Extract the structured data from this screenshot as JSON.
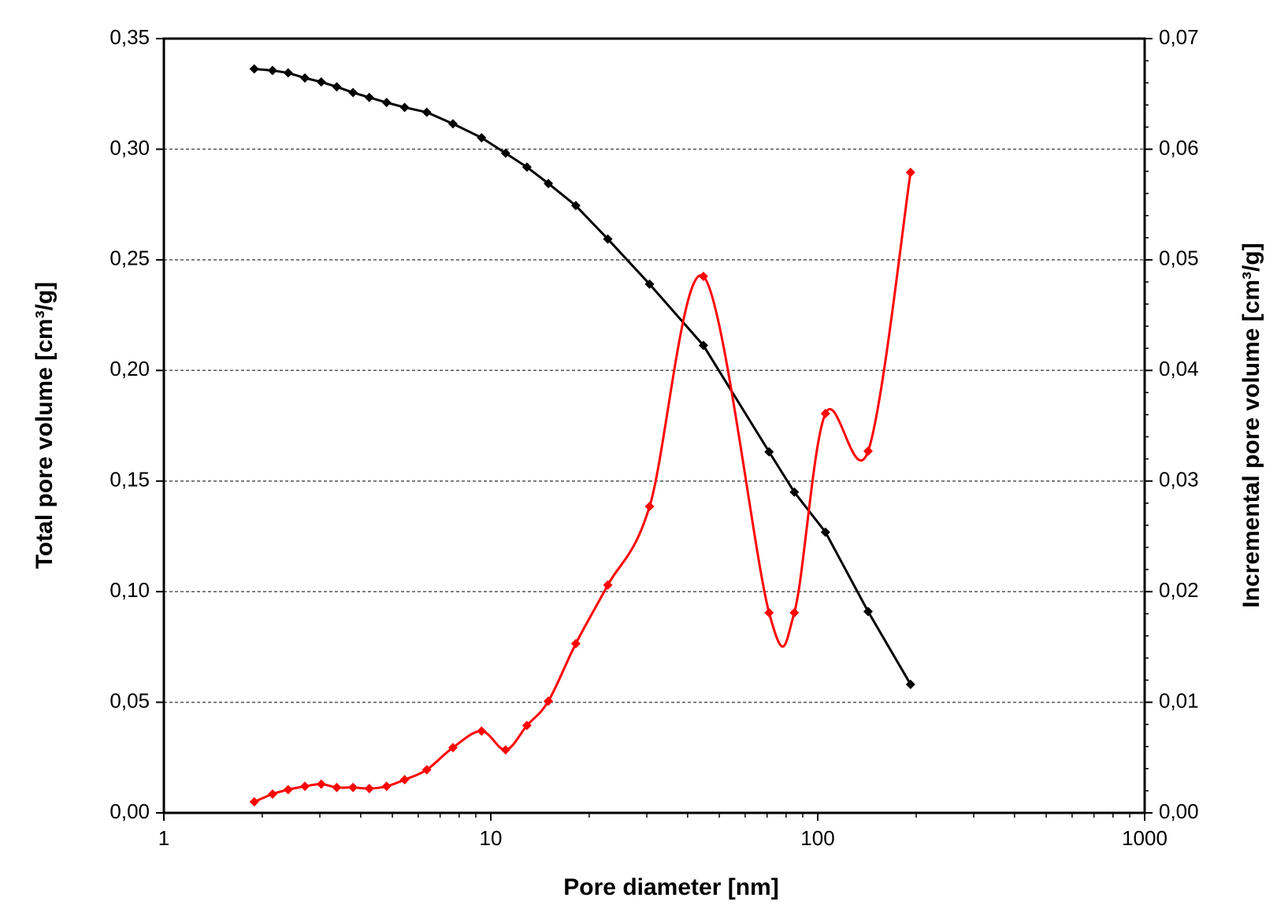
{
  "chart_data": {
    "type": "line",
    "x_label": "Pore diameter [nm]",
    "y_label": "Total pore volume [cm³/g]",
    "y2_label": "Incremental pore volume [cm³/g]",
    "xscale": "log",
    "xlim": [
      1,
      1000
    ],
    "xticks": [
      1,
      10,
      100,
      1000
    ],
    "ylim": [
      0,
      0.35
    ],
    "yticks": [
      {
        "value": 0,
        "label": "0,00"
      },
      {
        "value": 0.05,
        "label": "0,05"
      },
      {
        "value": 0.1,
        "label": "0,10"
      },
      {
        "value": 0.15,
        "label": "0,15"
      },
      {
        "value": 0.2,
        "label": "0,20"
      },
      {
        "value": 0.25,
        "label": "0,25"
      },
      {
        "value": 0.3,
        "label": "0,30"
      },
      {
        "value": 0.35,
        "label": "0,35"
      }
    ],
    "y2lim": [
      0,
      0.07
    ],
    "y2ticks": [
      {
        "value": 0,
        "label": "0,00"
      },
      {
        "value": 0.01,
        "label": "0,01"
      },
      {
        "value": 0.02,
        "label": "0,02"
      },
      {
        "value": 0.03,
        "label": "0,03"
      },
      {
        "value": 0.04,
        "label": "0,04"
      },
      {
        "value": 0.05,
        "label": "0,05"
      },
      {
        "value": 0.06,
        "label": "0,06"
      },
      {
        "value": 0.07,
        "label": "0,07"
      }
    ],
    "grid": true,
    "x": [
      1.89,
      2.15,
      2.4,
      2.7,
      3.03,
      3.38,
      3.79,
      4.25,
      4.8,
      5.45,
      6.37,
      7.66,
      9.37,
      11.1,
      12.9,
      15.0,
      18.2,
      22.8,
      30.6,
      44.7,
      71.0,
      84.8,
      105.6,
      142.6,
      192.3
    ],
    "series": [
      {
        "color": "#000000",
        "smooth": false,
        "values": [
          0.3363,
          0.3356,
          0.3345,
          0.3322,
          0.3304,
          0.3282,
          0.3256,
          0.3234,
          0.3211,
          0.3189,
          0.3167,
          0.3115,
          0.3052,
          0.2982,
          0.2919,
          0.2845,
          0.2745,
          0.2594,
          0.239,
          0.2113,
          0.1632,
          0.145,
          0.1269,
          0.091,
          0.0581
        ]
      },
      {
        "color": "#ff0000",
        "axis": "y2",
        "smooth": true,
        "values": [
          0.001,
          0.0017,
          0.0021,
          0.0024,
          0.0026,
          0.0023,
          0.0023,
          0.0022,
          0.0024,
          0.003,
          0.0039,
          0.0059,
          0.0074,
          0.0057,
          0.0079,
          0.0101,
          0.0153,
          0.0206,
          0.0277,
          0.0485,
          0.0181,
          0.0181,
          0.0361,
          0.0327,
          0.0579
        ]
      }
    ]
  }
}
